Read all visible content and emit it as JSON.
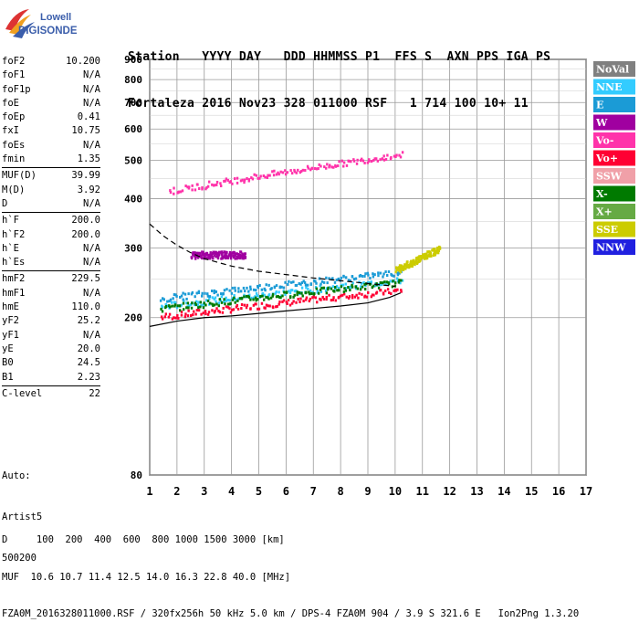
{
  "header": {
    "line1": "Station   YYYY DAY   DDD HHMMSS P1  FFS S  AXN PPS IGA PS",
    "line2": "Fortaleza 2016 Nov23 328 011000 RSF   1 714 100 10+ 11"
  },
  "logo": {
    "line1": "Lowell",
    "line2": "DIGISONDE",
    "color": "#3b5eab"
  },
  "params": [
    {
      "name": "foF2",
      "value": "10.200"
    },
    {
      "name": "foF1",
      "value": "N/A"
    },
    {
      "name": "foF1p",
      "value": "N/A"
    },
    {
      "name": "foE",
      "value": "N/A"
    },
    {
      "name": "foEp",
      "value": "0.41"
    },
    {
      "name": "fxI",
      "value": "10.75"
    },
    {
      "name": "foEs",
      "value": "N/A"
    },
    {
      "name": "fmin",
      "value": "1.35"
    },
    {
      "sep": true
    },
    {
      "name": "MUF(D)",
      "value": "39.99"
    },
    {
      "name": "M(D)",
      "value": "3.92"
    },
    {
      "name": "D",
      "value": "N/A"
    },
    {
      "sep": true
    },
    {
      "name": "h`F",
      "value": "200.0"
    },
    {
      "name": "h`F2",
      "value": "200.0"
    },
    {
      "name": "h`E",
      "value": "N/A"
    },
    {
      "name": "h`Es",
      "value": "N/A"
    },
    {
      "sep": true
    },
    {
      "name": "hmF2",
      "value": "229.5"
    },
    {
      "name": "hmF1",
      "value": "N/A"
    },
    {
      "name": "hmE",
      "value": "110.0"
    },
    {
      "name": "yF2",
      "value": "25.2"
    },
    {
      "name": "yF1",
      "value": "N/A"
    },
    {
      "name": "yE",
      "value": "20.0"
    },
    {
      "name": "B0",
      "value": "24.5"
    },
    {
      "name": "B1",
      "value": "2.23"
    },
    {
      "sep": true
    },
    {
      "name": "C-level",
      "value": "22"
    }
  ],
  "sidenote": {
    "line1": "Auto:",
    "line2": "Artist5",
    "line3": "500200"
  },
  "footer": {
    "line1": "D     100  200  400  600  800 1000 1500 3000 [km]",
    "line2": "MUF  10.6 10.7 11.4 12.5 14.0 16.3 22.8 40.0 [MHz]",
    "line3": "FZA0M_2016328011000.RSF / 320fx256h 50 kHz 5.0 km / DPS-4 FZA0M 904 / 3.9 S 321.6 E   Ion2Png 1.3.20"
  },
  "chart_data": {
    "type": "scatter",
    "title": "",
    "xlabel": "",
    "ylabel": "",
    "x_ticks": [
      "1",
      "2",
      "3",
      "4",
      "5",
      "6",
      "7",
      "8",
      "9",
      "10",
      "11",
      "12",
      "13",
      "14",
      "15",
      "16",
      "17"
    ],
    "y_ticks": [
      "80",
      "200",
      "300",
      "400",
      "500",
      "600",
      "700",
      "800",
      "900"
    ],
    "xlim": [
      1,
      17
    ],
    "y_scale": "log",
    "ylim": [
      80,
      900
    ],
    "grid": true,
    "legend_position": "right",
    "legend": [
      {
        "label": "NoVal",
        "color": "#808080"
      },
      {
        "label": "NNE",
        "color": "#33ccff"
      },
      {
        "label": "E",
        "color": "#1b9bd6"
      },
      {
        "label": "W",
        "color": "#a000a0"
      },
      {
        "label": "Vo-",
        "color": "#ff33aa"
      },
      {
        "label": "Vo+",
        "color": "#ff0033"
      },
      {
        "label": "SSW",
        "color": "#f0a0a8"
      },
      {
        "label": "X-",
        "color": "#007a00"
      },
      {
        "label": "X+",
        "color": "#66aa44"
      },
      {
        "label": "SSE",
        "color": "#cccc00"
      },
      {
        "label": "NNW",
        "color": "#2020e0"
      }
    ],
    "profile_curve": {
      "name": "",
      "x": [
        1.0,
        2.0,
        3.0,
        4.0,
        5.0,
        6.0,
        7.0,
        8.0,
        9.0,
        9.8,
        10.2
      ],
      "y": [
        190,
        196,
        200,
        202,
        205,
        208,
        211,
        214,
        218,
        225,
        231
      ]
    },
    "dashed_curve": {
      "name": "",
      "x": [
        1.0,
        1.5,
        2.0,
        2.5,
        3.0,
        4.0,
        5.0,
        6.0,
        7.0,
        8.0,
        9.0,
        10.0
      ],
      "y": [
        345,
        322,
        305,
        292,
        282,
        270,
        262,
        257,
        252,
        248,
        244,
        240
      ]
    },
    "echo_traces": [
      {
        "name": "",
        "color": "#ff0033",
        "x": [
          1.4,
          10.2
        ],
        "y": [
          202,
          236
        ]
      },
      {
        "name": "",
        "color": "#33ccff",
        "x": [
          1.4,
          10.2
        ],
        "y": [
          215,
          250
        ]
      },
      {
        "name": "",
        "color": "#007a00",
        "x": [
          1.4,
          10.2
        ],
        "y": [
          212,
          247
        ]
      },
      {
        "name": "",
        "color": "#1b9bd6",
        "x": [
          1.4,
          10.2
        ],
        "y": [
          225,
          262
        ]
      },
      {
        "name": "",
        "color": "#ff33aa",
        "x": [
          1.7,
          10.2
        ],
        "y": [
          420,
          520
        ]
      },
      {
        "name": "",
        "color": "#a000a0",
        "x": [
          2.5,
          4.5
        ],
        "y": [
          290,
          290
        ]
      },
      {
        "name": "",
        "color": "#cccc00",
        "x": [
          10.0,
          11.6
        ],
        "y": [
          265,
          300
        ]
      }
    ]
  }
}
